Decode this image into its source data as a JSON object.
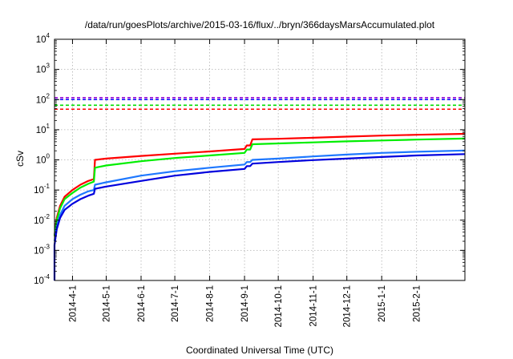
{
  "chart_data": {
    "type": "line",
    "title": "/data/run/goesPlots/archive/2015-03-16/flux/../bryn/366daysMarsAccumulated.plot",
    "xlabel": "Coordinated Universal Time (UTC)",
    "ylabel": "cSv",
    "y_scale": "log",
    "ylim": [
      0.0001,
      10000
    ],
    "xlim": [
      "2014-03-16",
      "2015-03-16"
    ],
    "grid": true,
    "legend": "none",
    "y_ticks": [
      {
        "base": "10",
        "exp": "-4",
        "value": 0.0001
      },
      {
        "base": "10",
        "exp": "-3",
        "value": 0.001
      },
      {
        "base": "10",
        "exp": "-2",
        "value": 0.01
      },
      {
        "base": "10",
        "exp": "-1",
        "value": 0.1
      },
      {
        "base": "10",
        "exp": "0",
        "value": 1
      },
      {
        "base": "10",
        "exp": "1",
        "value": 10
      },
      {
        "base": "10",
        "exp": "2",
        "value": 100
      },
      {
        "base": "10",
        "exp": "3",
        "value": 1000
      },
      {
        "base": "10",
        "exp": "4",
        "value": 10000
      }
    ],
    "x_ticks": [
      {
        "label": "2014-4-1",
        "date": "2014-04-01"
      },
      {
        "label": "2014-5-1",
        "date": "2014-05-01"
      },
      {
        "label": "2014-6-1",
        "date": "2014-06-01"
      },
      {
        "label": "2014-7-1",
        "date": "2014-07-01"
      },
      {
        "label": "2014-8-1",
        "date": "2014-08-01"
      },
      {
        "label": "2014-9-1",
        "date": "2014-09-01"
      },
      {
        "label": "2014-10-1",
        "date": "2014-10-01"
      },
      {
        "label": "2014-11-1",
        "date": "2014-11-01"
      },
      {
        "label": "2014-12-1",
        "date": "2014-12-01"
      },
      {
        "label": "2015-1-1",
        "date": "2015-01-01"
      },
      {
        "label": "2015-2-1",
        "date": "2015-02-01"
      }
    ],
    "reference_lines": [
      {
        "color": "#9400d3",
        "value": 115
      },
      {
        "color": "#0000ff",
        "value": 100
      },
      {
        "color": "#00dd00",
        "value": 65
      },
      {
        "color": "#ff0000",
        "value": 48
      }
    ],
    "series": [
      {
        "color": "#ff0000",
        "points": [
          [
            "2014-03-16",
            0.003
          ],
          [
            "2014-03-18",
            0.012
          ],
          [
            "2014-03-21",
            0.03
          ],
          [
            "2014-03-25",
            0.06
          ],
          [
            "2014-04-01",
            0.1
          ],
          [
            "2014-04-08",
            0.15
          ],
          [
            "2014-04-15",
            0.2
          ],
          [
            "2014-04-20",
            0.23
          ],
          [
            "2014-04-21",
            1.0
          ],
          [
            "2014-05-01",
            1.1
          ],
          [
            "2014-06-01",
            1.35
          ],
          [
            "2014-07-01",
            1.6
          ],
          [
            "2014-08-01",
            1.9
          ],
          [
            "2014-09-01",
            2.3
          ],
          [
            "2014-09-03",
            3.0
          ],
          [
            "2014-09-06",
            3.0
          ],
          [
            "2014-09-08",
            4.8
          ],
          [
            "2014-10-01",
            5.0
          ],
          [
            "2014-11-01",
            5.4
          ],
          [
            "2014-12-01",
            5.9
          ],
          [
            "2015-01-01",
            6.4
          ],
          [
            "2015-02-01",
            6.8
          ],
          [
            "2015-03-16",
            7.3
          ]
        ]
      },
      {
        "color": "#00ee00",
        "points": [
          [
            "2014-03-16",
            0.003
          ],
          [
            "2014-03-18",
            0.01
          ],
          [
            "2014-03-21",
            0.025
          ],
          [
            "2014-03-25",
            0.05
          ],
          [
            "2014-04-01",
            0.08
          ],
          [
            "2014-04-08",
            0.12
          ],
          [
            "2014-04-15",
            0.16
          ],
          [
            "2014-04-20",
            0.19
          ],
          [
            "2014-04-21",
            0.55
          ],
          [
            "2014-05-01",
            0.65
          ],
          [
            "2014-06-01",
            0.9
          ],
          [
            "2014-07-01",
            1.15
          ],
          [
            "2014-08-01",
            1.4
          ],
          [
            "2014-09-01",
            1.7
          ],
          [
            "2014-09-03",
            2.2
          ],
          [
            "2014-09-06",
            2.2
          ],
          [
            "2014-09-08",
            3.3
          ],
          [
            "2014-10-01",
            3.5
          ],
          [
            "2014-11-01",
            3.8
          ],
          [
            "2014-12-01",
            4.1
          ],
          [
            "2015-01-01",
            4.4
          ],
          [
            "2015-02-01",
            4.7
          ],
          [
            "2015-03-16",
            5.1
          ]
        ]
      },
      {
        "color": "#1e78ff",
        "points": [
          [
            "2014-03-16",
            0.002
          ],
          [
            "2014-03-18",
            0.006
          ],
          [
            "2014-03-21",
            0.015
          ],
          [
            "2014-03-25",
            0.03
          ],
          [
            "2014-04-01",
            0.05
          ],
          [
            "2014-04-08",
            0.07
          ],
          [
            "2014-04-15",
            0.09
          ],
          [
            "2014-04-20",
            0.1
          ],
          [
            "2014-04-21",
            0.15
          ],
          [
            "2014-05-01",
            0.18
          ],
          [
            "2014-06-01",
            0.3
          ],
          [
            "2014-07-01",
            0.42
          ],
          [
            "2014-08-01",
            0.55
          ],
          [
            "2014-09-01",
            0.7
          ],
          [
            "2014-09-03",
            0.85
          ],
          [
            "2014-09-06",
            0.85
          ],
          [
            "2014-09-08",
            1.0
          ],
          [
            "2014-10-01",
            1.1
          ],
          [
            "2014-11-01",
            1.3
          ],
          [
            "2014-12-01",
            1.5
          ],
          [
            "2015-01-01",
            1.7
          ],
          [
            "2015-02-01",
            1.85
          ],
          [
            "2015-03-16",
            2.05
          ]
        ]
      },
      {
        "color": "#0000dd",
        "points": [
          [
            "2014-03-16",
            0.0001
          ],
          [
            "2014-03-16",
            0.0015
          ],
          [
            "2014-03-18",
            0.005
          ],
          [
            "2014-03-21",
            0.012
          ],
          [
            "2014-03-25",
            0.022
          ],
          [
            "2014-04-01",
            0.035
          ],
          [
            "2014-04-08",
            0.05
          ],
          [
            "2014-04-15",
            0.065
          ],
          [
            "2014-04-20",
            0.075
          ],
          [
            "2014-04-21",
            0.11
          ],
          [
            "2014-05-01",
            0.13
          ],
          [
            "2014-06-01",
            0.2
          ],
          [
            "2014-07-01",
            0.3
          ],
          [
            "2014-08-01",
            0.4
          ],
          [
            "2014-09-01",
            0.5
          ],
          [
            "2014-09-03",
            0.62
          ],
          [
            "2014-09-06",
            0.62
          ],
          [
            "2014-09-08",
            0.75
          ],
          [
            "2014-10-01",
            0.85
          ],
          [
            "2014-11-01",
            0.98
          ],
          [
            "2014-12-01",
            1.1
          ],
          [
            "2015-01-01",
            1.25
          ],
          [
            "2015-02-01",
            1.4
          ],
          [
            "2015-03-16",
            1.55
          ]
        ]
      }
    ]
  }
}
